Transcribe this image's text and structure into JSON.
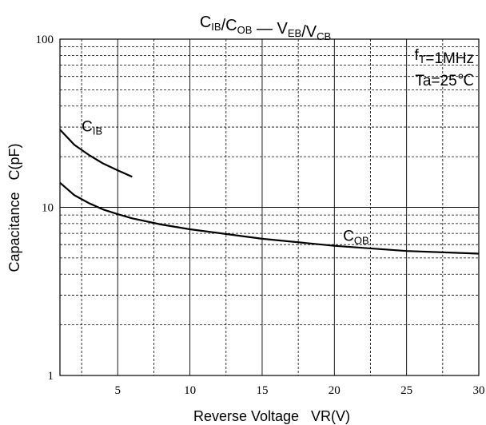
{
  "chart_data": {
    "type": "line",
    "title": {
      "parts": [
        {
          "main": "C",
          "sub": "IB"
        },
        {
          "main": "/C",
          "sub": "OB"
        },
        {
          "main": " — V",
          "sub": "EB"
        },
        {
          "main": "/V",
          "sub": "CB"
        }
      ]
    },
    "xlabel": "Reverse Voltage   VR(V)",
    "ylabel": "Capacitance   C(pF)",
    "xlim": [
      1,
      30
    ],
    "ylim": [
      1,
      100
    ],
    "yscale": "log",
    "xticks": [
      5,
      10,
      15,
      20,
      25,
      30
    ],
    "x_minor_gridlines": [
      2.5,
      7.5,
      12.5,
      17.5,
      22.5,
      27.5
    ],
    "yticks": [
      1,
      10,
      100
    ],
    "grid": true,
    "annotations": [
      {
        "main": "f",
        "sub": "T",
        "rest": "=1MHz"
      },
      {
        "main": "Ta=25℃",
        "sub": "",
        "rest": ""
      }
    ],
    "series": [
      {
        "name": "C_IB",
        "label": {
          "main": "C",
          "sub": "IB"
        },
        "x": [
          1,
          2,
          3,
          4,
          5,
          6
        ],
        "y": [
          29,
          23.5,
          20.5,
          18.2,
          16.6,
          15.2
        ]
      },
      {
        "name": "C_OB",
        "label": {
          "main": "C",
          "sub": "OB"
        },
        "x": [
          1,
          2,
          3,
          4,
          5,
          6,
          8,
          10,
          15,
          20,
          25,
          30
        ],
        "y": [
          14,
          11.8,
          10.6,
          9.7,
          9.1,
          8.6,
          7.9,
          7.4,
          6.5,
          5.9,
          5.5,
          5.3
        ]
      }
    ]
  }
}
